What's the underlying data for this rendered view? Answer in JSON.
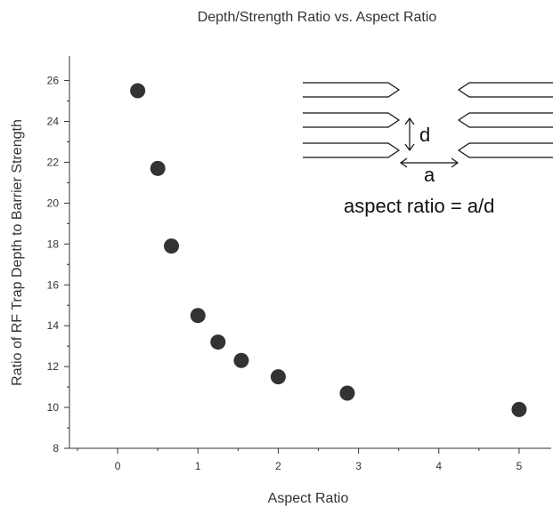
{
  "chart_data": {
    "type": "scatter",
    "title": "Depth/Strength Ratio vs. Aspect Ratio",
    "xlabel": "Aspect Ratio",
    "ylabel": "Ratio of RF Trap Depth to Barrier Strength",
    "xlim": [
      -0.6,
      5.4
    ],
    "ylim": [
      8,
      27.2
    ],
    "xticks": [
      0,
      1,
      2,
      3,
      4,
      5
    ],
    "yticks": [
      8,
      10,
      12,
      14,
      16,
      18,
      20,
      22,
      24,
      26
    ],
    "grid": false,
    "legend": "none",
    "points": [
      {
        "x": 0.25,
        "y": 25.5
      },
      {
        "x": 0.5,
        "y": 21.7
      },
      {
        "x": 0.67,
        "y": 17.9
      },
      {
        "x": 1.0,
        "y": 14.5
      },
      {
        "x": 1.25,
        "y": 13.2
      },
      {
        "x": 1.54,
        "y": 12.3
      },
      {
        "x": 2.0,
        "y": 11.5
      },
      {
        "x": 2.86,
        "y": 10.7
      },
      {
        "x": 5.0,
        "y": 9.9
      }
    ],
    "marker_color": "#333333",
    "inset": {
      "d_label": "d",
      "a_label": "a",
      "equation": "aspect ratio = a/d"
    }
  }
}
